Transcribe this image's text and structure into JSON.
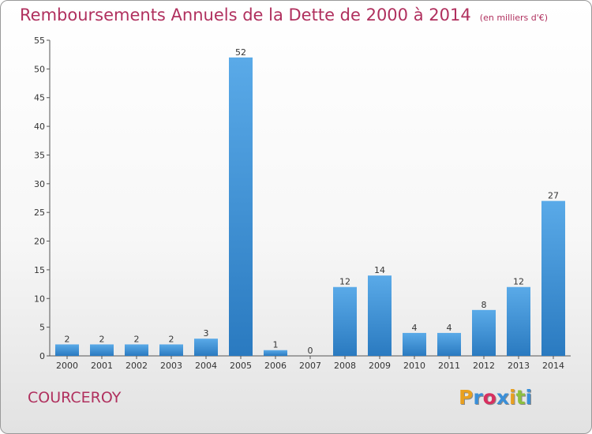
{
  "title": "Remboursements Annuels de la Dette de 2000 à 2014",
  "unit_note": "(en milliers d'€)",
  "commune": "COURCEROY",
  "logo": {
    "text": "Proxiti",
    "letter_colors": [
      "#e8a020",
      "#3a8fd8",
      "#d83060",
      "#3a8fd8",
      "#e8a020",
      "#8cc040",
      "#3a8fd8"
    ]
  },
  "colors": {
    "bar_top": "#5aaae8",
    "bar_bottom": "#2a7ac0",
    "title": "#b0305e"
  },
  "chart_data": {
    "type": "bar",
    "title": "Remboursements Annuels de la Dette de 2000 à 2014",
    "categories": [
      "2000",
      "2001",
      "2002",
      "2003",
      "2004",
      "2005",
      "2006",
      "2007",
      "2008",
      "2009",
      "2010",
      "2011",
      "2012",
      "2013",
      "2014"
    ],
    "values": [
      2,
      2,
      2,
      2,
      3,
      52,
      1,
      0,
      12,
      14,
      4,
      4,
      8,
      12,
      27
    ],
    "ylim": [
      0,
      55
    ],
    "yticks": [
      0,
      5,
      10,
      15,
      20,
      25,
      30,
      35,
      40,
      45,
      50,
      55
    ],
    "grid": false,
    "xlabel": "",
    "ylabel": ""
  }
}
